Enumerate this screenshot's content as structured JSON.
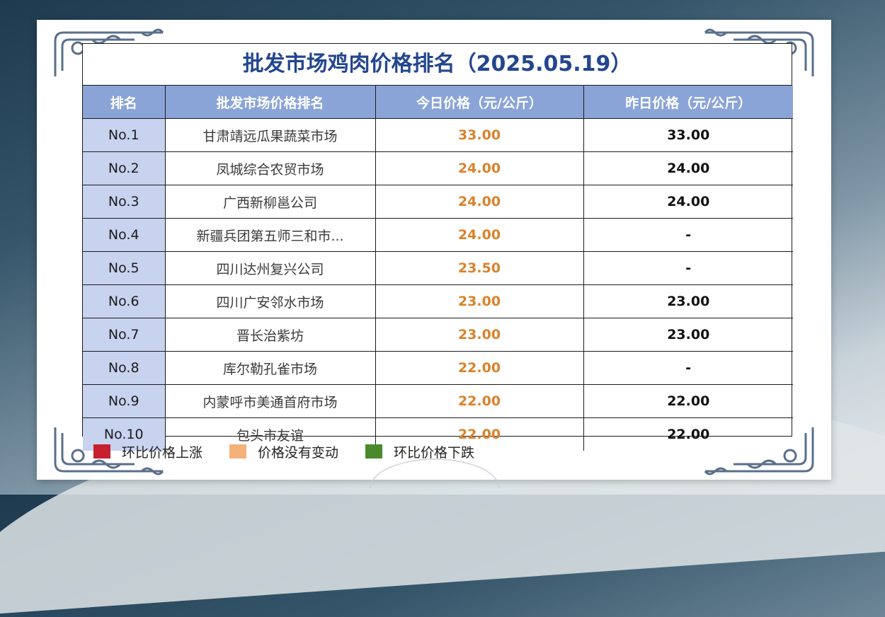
{
  "title": "批发市场鸡肉价格排名（2025.05.19）",
  "columns": [
    "排名",
    "批发市场价格排名",
    "今日价格（元/公斤）",
    "昨日价格（元/公斤）"
  ],
  "rows": [
    {
      "rank": "No.1",
      "market": "甘肃靖远瓜果蔬菜市场",
      "today": "33.00",
      "yesterday": "33.00"
    },
    {
      "rank": "No.2",
      "market": "凤城综合农贸市场",
      "today": "24.00",
      "yesterday": "24.00"
    },
    {
      "rank": "No.3",
      "market": "广西新柳邕公司",
      "today": "24.00",
      "yesterday": "24.00"
    },
    {
      "rank": "No.4",
      "market": "新疆兵团第五师三和市...",
      "today": "24.00",
      "yesterday": "-"
    },
    {
      "rank": "No.5",
      "market": "四川达州复兴公司",
      "today": "23.50",
      "yesterday": "-"
    },
    {
      "rank": "No.6",
      "market": "四川广安邻水市场",
      "today": "23.00",
      "yesterday": "23.00"
    },
    {
      "rank": "No.7",
      "market": "晋长治紫坊",
      "today": "23.00",
      "yesterday": "23.00"
    },
    {
      "rank": "No.8",
      "market": "库尔勒孔雀市场",
      "today": "22.00",
      "yesterday": "-"
    },
    {
      "rank": "No.9",
      "market": "内蒙呼市美通首府市场",
      "today": "22.00",
      "yesterday": "22.00"
    },
    {
      "rank": "No.10",
      "market": "包头市友谊",
      "today": "22.00",
      "yesterday": "22.00"
    }
  ],
  "legend": [
    {
      "label": "环比价格上涨",
      "color": "#c8202f"
    },
    {
      "label": "价格没有变动",
      "color": "#f3b27a"
    },
    {
      "label": "环比价格下跌",
      "color": "#4a8a2c"
    }
  ],
  "colors": {
    "title": "#23468f",
    "header_bg": "#8aa4d8",
    "rank_bg": "#c7d3ef",
    "today_price": "#d9822b"
  }
}
